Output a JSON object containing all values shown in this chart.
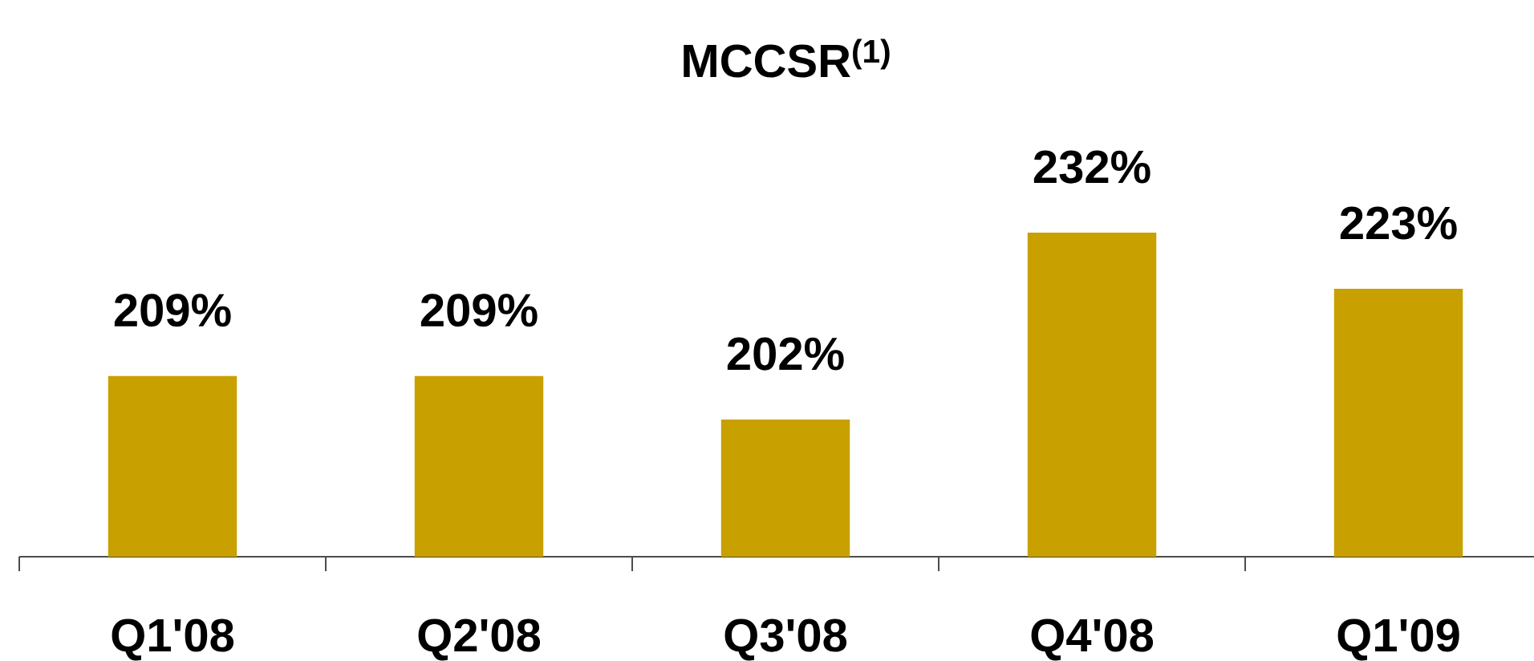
{
  "chart_data": {
    "type": "bar",
    "title": "MCCSR$^{(1)}$",
    "categories": [
      "Q1'08",
      "Q2'08",
      "Q3'08",
      "Q4'08",
      "Q1'09"
    ],
    "values": [
      209,
      209,
      202,
      232,
      223
    ],
    "data_labels": true,
    "value_labels": [
      "209%",
      "209%",
      "202%",
      "232%",
      "223%"
    ],
    "color": "#c8a000",
    "ylim": [
      180,
      232
    ],
    "tick_labels": "x"
  }
}
